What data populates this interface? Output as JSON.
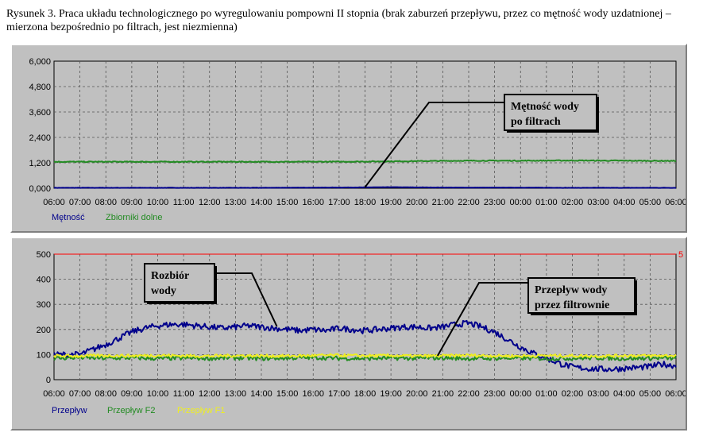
{
  "caption": "Rysunek 3. Praca układu technologicznego po wyregulowaniu pompowni II stopnia (brak zaburzeń przepływu, przez co mętność wody uzdatnionej – mierzona bezpośrednio po filtrach, jest niezmienna)",
  "colors": {
    "blue": "#00008b",
    "green": "#228b22",
    "yellow": "#eeee22",
    "red": "#ff0000",
    "grid": "#555555",
    "plot_bg": "#c0c0c0"
  },
  "chart_data": [
    {
      "type": "line",
      "title": "",
      "xlabel": "",
      "ylabel": "",
      "x_ticks": [
        "06:00",
        "07:00",
        "08:00",
        "09:00",
        "10:00",
        "11:00",
        "12:00",
        "13:00",
        "14:00",
        "15:00",
        "16:00",
        "17:00",
        "18:00",
        "19:00",
        "20:00",
        "21:00",
        "22:00",
        "23:00",
        "00:00",
        "01:00",
        "02:00",
        "03:00",
        "04:00",
        "05:00",
        "06:00"
      ],
      "y_ticks": [
        "0,000",
        "1,200",
        "2,400",
        "3,600",
        "4,800",
        "6,000"
      ],
      "ylim": [
        0,
        6
      ],
      "grid": true,
      "legend_position": "bottom-left",
      "series": [
        {
          "name": "Mętność",
          "color": "#00008b",
          "x": [
            0,
            2,
            4,
            6,
            8,
            10,
            12,
            13,
            14,
            16,
            18,
            20,
            22,
            24
          ],
          "values": [
            0.02,
            0.02,
            0.02,
            0.02,
            0.02,
            0.03,
            0.04,
            0.05,
            0.04,
            0.03,
            0.03,
            0.02,
            0.02,
            0.02
          ]
        },
        {
          "name": "Zbiorniki dolne",
          "color": "#228b22",
          "x": [
            0,
            2,
            4,
            6,
            8,
            10,
            12,
            14,
            16,
            18,
            20,
            22,
            24
          ],
          "values": [
            1.25,
            1.25,
            1.25,
            1.25,
            1.25,
            1.25,
            1.26,
            1.28,
            1.3,
            1.3,
            1.31,
            1.3,
            1.29
          ]
        }
      ],
      "annotations": [
        {
          "text_lines": [
            "Mętność wody",
            "po filtrach"
          ],
          "target_x": 12.0,
          "target_y": 0.05
        }
      ]
    },
    {
      "type": "line",
      "title": "",
      "xlabel": "",
      "ylabel": "",
      "x_ticks": [
        "06:00",
        "07:00",
        "08:00",
        "09:00",
        "10:00",
        "11:00",
        "12:00",
        "13:00",
        "14:00",
        "15:00",
        "16:00",
        "17:00",
        "18:00",
        "19:00",
        "20:00",
        "21:00",
        "22:00",
        "23:00",
        "00:00",
        "01:00",
        "02:00",
        "03:00",
        "04:00",
        "05:00",
        "06:00"
      ],
      "y_ticks": [
        "0",
        "100",
        "200",
        "300",
        "400",
        "500"
      ],
      "ylim": [
        0,
        500
      ],
      "right_axis_label": "5",
      "grid": true,
      "legend_position": "bottom-left",
      "series": [
        {
          "name": "Przepływ",
          "color": "#00008b",
          "x": [
            0,
            0.5,
            1,
            1.5,
            2,
            2.5,
            3,
            3.5,
            4,
            4.5,
            5,
            5.5,
            6,
            6.5,
            7,
            7.5,
            8,
            8.5,
            9,
            9.5,
            10,
            10.5,
            11,
            11.5,
            12,
            12.5,
            13,
            13.5,
            14,
            14.5,
            15,
            15.5,
            16,
            16.5,
            17,
            17.5,
            18,
            18.5,
            19,
            19.5,
            20,
            20.5,
            21,
            21.5,
            22,
            22.5,
            23,
            23.5,
            24
          ],
          "values": [
            100,
            100,
            100,
            120,
            140,
            165,
            190,
            205,
            215,
            220,
            220,
            215,
            210,
            205,
            210,
            215,
            210,
            205,
            200,
            195,
            200,
            195,
            205,
            200,
            195,
            200,
            205,
            210,
            210,
            205,
            210,
            220,
            225,
            210,
            190,
            160,
            130,
            105,
            85,
            65,
            50,
            45,
            42,
            42,
            45,
            48,
            52,
            62,
            55
          ]
        },
        {
          "name": "Przepływ F2",
          "color": "#228b22",
          "x": [
            0,
            1,
            2,
            3,
            4,
            5,
            6,
            7,
            8,
            9,
            10,
            11,
            12,
            13,
            14,
            15,
            16,
            17,
            18,
            19,
            20,
            21,
            22,
            23,
            24
          ],
          "values": [
            85,
            88,
            85,
            87,
            84,
            86,
            85,
            87,
            84,
            86,
            88,
            85,
            84,
            86,
            85,
            87,
            84,
            85,
            86,
            84,
            85,
            87,
            84,
            86,
            85
          ]
        },
        {
          "name": "Przepływ F1",
          "color": "#eeee22",
          "x": [
            0,
            1,
            2,
            3,
            4,
            5,
            6,
            7,
            8,
            9,
            10,
            11,
            12,
            13,
            14,
            15,
            16,
            17,
            18,
            19,
            20,
            21,
            22,
            23,
            24
          ],
          "values": [
            95,
            94,
            96,
            95,
            97,
            95,
            94,
            96,
            95,
            94,
            96,
            97,
            95,
            96,
            94,
            95,
            97,
            95,
            94,
            96,
            95,
            94,
            96,
            95,
            96
          ]
        }
      ],
      "annotations": [
        {
          "text_lines": [
            "Rozbiór",
            "wody"
          ],
          "target_x": 8.6,
          "target_y": 212
        },
        {
          "text_lines": [
            "Przepływ wody",
            "przez filtrownie"
          ],
          "target_x": 14.8,
          "target_y": 95
        }
      ]
    }
  ]
}
